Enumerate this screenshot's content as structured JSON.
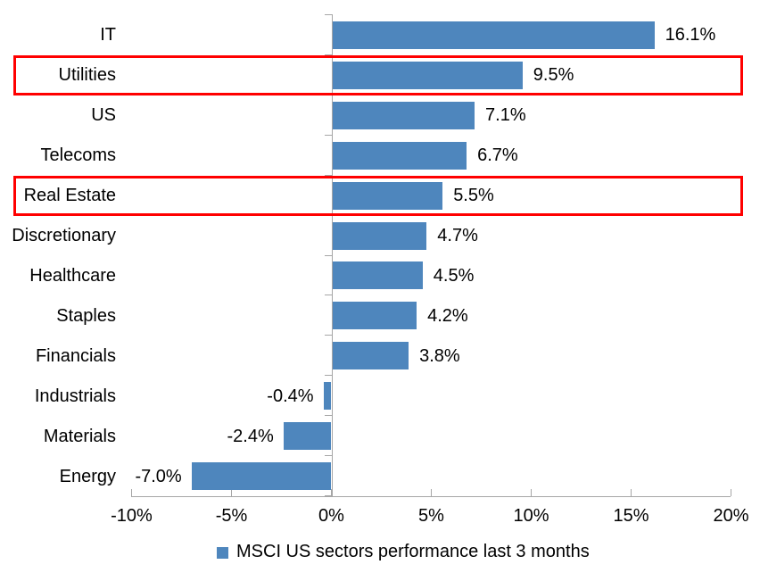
{
  "colors": {
    "bar": "#4E86BD",
    "axis": "#A6A6A6",
    "highlight_border": "#FF0000",
    "text": "#000000",
    "background": "#FFFFFF"
  },
  "legend": {
    "label": "MSCI US sectors performance last 3 months",
    "swatch_color": "#4E86BD",
    "position": "bottom"
  },
  "chart_data": {
    "type": "bar",
    "orientation": "horizontal",
    "title": "",
    "xlabel": "",
    "ylabel": "",
    "xlim": [
      -10,
      20
    ],
    "grid": false,
    "categories": [
      "IT",
      "Utilities",
      "US",
      "Telecoms",
      "Real Estate",
      "Discretionary",
      "Healthcare",
      "Staples",
      "Financials",
      "Industrials",
      "Materials",
      "Energy"
    ],
    "values": [
      16.1,
      9.5,
      7.1,
      6.7,
      5.5,
      4.7,
      4.5,
      4.2,
      3.8,
      -0.4,
      -2.4,
      -7.0
    ],
    "value_labels": [
      "16.1%",
      "9.5%",
      "7.1%",
      "6.7%",
      "5.5%",
      "4.7%",
      "4.5%",
      "4.2%",
      "3.8%",
      "-0.4%",
      "-2.4%",
      "-7.0%"
    ],
    "highlighted_categories": [
      "Utilities",
      "Real Estate"
    ],
    "series_name": "MSCI US sectors performance last 3 months",
    "x_ticks": [
      {
        "value": -10,
        "label": "-10%"
      },
      {
        "value": -5,
        "label": "-5%"
      },
      {
        "value": 0,
        "label": "0%"
      },
      {
        "value": 5,
        "label": "5%"
      },
      {
        "value": 10,
        "label": "10%"
      },
      {
        "value": 15,
        "label": "15%"
      },
      {
        "value": 20,
        "label": "20%"
      }
    ]
  }
}
